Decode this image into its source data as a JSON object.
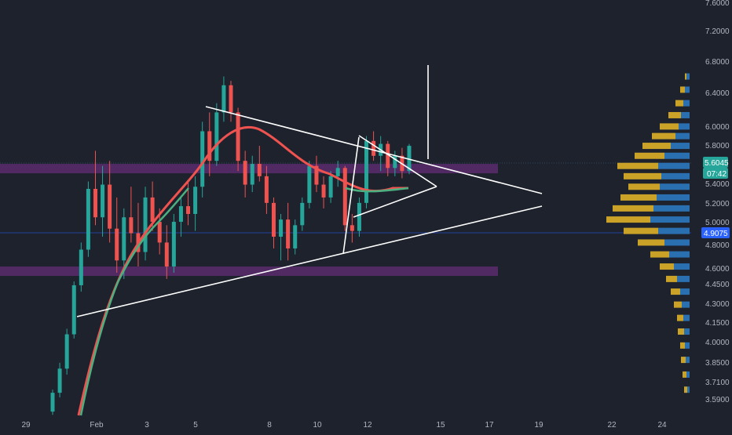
{
  "chart_data": {
    "type": "candlestick",
    "x_axis": {
      "ticks": [
        "29",
        "Feb",
        "3",
        "5",
        "8",
        "10",
        "12",
        "15",
        "17",
        "19",
        "22",
        "24"
      ]
    },
    "y_axis": {
      "ticks": [
        "7.6000",
        "7.2000",
        "6.8000",
        "6.4000",
        "6.0000",
        "5.8000",
        "5.4000",
        "5.2000",
        "5.0000",
        "4.8000",
        "4.6000",
        "4.4500",
        "4.3000",
        "4.1500",
        "4.0000",
        "3.8500",
        "3.7100",
        "3.5900"
      ],
      "scale": "log"
    },
    "price_labels": {
      "current_price": "5.6045",
      "countdown": "07:42",
      "level_price": "4.9075"
    },
    "candles": [
      {
        "x": "Jan 29 late",
        "o": 3.46,
        "h": 3.6,
        "l": 3.44,
        "c": 3.58
      },
      {
        "x": "Jan 30 a",
        "o": 3.58,
        "h": 3.78,
        "l": 3.55,
        "c": 3.74
      },
      {
        "x": "Jan 30 b",
        "o": 3.74,
        "h": 4.02,
        "l": 3.7,
        "c": 3.98
      },
      {
        "x": "Jan 30 c",
        "o": 3.98,
        "h": 4.38,
        "l": 3.95,
        "c": 4.35
      },
      {
        "x": "Jan 30 d",
        "o": 4.35,
        "h": 4.7,
        "l": 4.3,
        "c": 4.64
      },
      {
        "x": "Jan 31 a",
        "o": 4.64,
        "h": 5.25,
        "l": 4.58,
        "c": 5.18
      },
      {
        "x": "Jan 31 b",
        "o": 5.18,
        "h": 5.55,
        "l": 4.85,
        "c": 4.92
      },
      {
        "x": "Jan 31 c",
        "o": 4.92,
        "h": 5.4,
        "l": 4.75,
        "c": 5.22
      },
      {
        "x": "Jan 31 d",
        "o": 5.22,
        "h": 5.45,
        "l": 4.7,
        "c": 4.82
      },
      {
        "x": "Feb 1 a",
        "o": 4.82,
        "h": 5.1,
        "l": 4.45,
        "c": 4.55
      },
      {
        "x": "Feb 1 b",
        "o": 4.55,
        "h": 5.0,
        "l": 4.4,
        "c": 4.92
      },
      {
        "x": "Feb 1 c",
        "o": 4.92,
        "h": 5.2,
        "l": 4.7,
        "c": 4.78
      },
      {
        "x": "Feb 2 a",
        "o": 4.78,
        "h": 5.05,
        "l": 4.5,
        "c": 4.62
      },
      {
        "x": "Feb 2 b",
        "o": 4.62,
        "h": 5.2,
        "l": 4.55,
        "c": 5.1
      },
      {
        "x": "Feb 2 c",
        "o": 5.1,
        "h": 5.25,
        "l": 4.8,
        "c": 4.88
      },
      {
        "x": "Feb 2 d",
        "o": 4.88,
        "h": 5.0,
        "l": 4.6,
        "c": 4.7
      },
      {
        "x": "Feb 3 a",
        "o": 4.7,
        "h": 4.85,
        "l": 4.4,
        "c": 4.5
      },
      {
        "x": "Feb 3 b",
        "o": 4.5,
        "h": 4.95,
        "l": 4.45,
        "c": 4.88
      },
      {
        "x": "Feb 3 c",
        "o": 4.88,
        "h": 5.1,
        "l": 4.75,
        "c": 5.02
      },
      {
        "x": "Feb 4 a",
        "o": 5.02,
        "h": 5.25,
        "l": 4.85,
        "c": 4.95
      },
      {
        "x": "Feb 4 b",
        "o": 4.95,
        "h": 5.3,
        "l": 4.8,
        "c": 5.2
      },
      {
        "x": "Feb 4 c",
        "o": 5.2,
        "h": 5.85,
        "l": 5.1,
        "c": 5.75
      },
      {
        "x": "Feb 4 d",
        "o": 5.75,
        "h": 5.95,
        "l": 5.3,
        "c": 5.45
      },
      {
        "x": "Feb 5 a",
        "o": 5.45,
        "h": 6.05,
        "l": 5.4,
        "c": 5.95
      },
      {
        "x": "Feb 5 b",
        "o": 5.95,
        "h": 6.35,
        "l": 5.85,
        "c": 6.25
      },
      {
        "x": "Feb 5 c",
        "o": 6.25,
        "h": 6.3,
        "l": 5.85,
        "c": 5.95
      },
      {
        "x": "Feb 6 a",
        "o": 5.95,
        "h": 6.0,
        "l": 5.35,
        "c": 5.45
      },
      {
        "x": "Feb 6 b",
        "o": 5.45,
        "h": 5.55,
        "l": 5.1,
        "c": 5.22
      },
      {
        "x": "Feb 6 c",
        "o": 5.22,
        "h": 5.5,
        "l": 5.15,
        "c": 5.42
      },
      {
        "x": "Feb 7 a",
        "o": 5.42,
        "h": 5.6,
        "l": 5.25,
        "c": 5.3
      },
      {
        "x": "Feb 7 b",
        "o": 5.3,
        "h": 5.4,
        "l": 4.95,
        "c": 5.05
      },
      {
        "x": "Feb 7 c",
        "o": 5.05,
        "h": 5.1,
        "l": 4.65,
        "c": 4.75
      },
      {
        "x": "Feb 7 d",
        "o": 4.75,
        "h": 4.95,
        "l": 4.55,
        "c": 4.9
      },
      {
        "x": "Feb 8 a",
        "o": 4.9,
        "h": 5.05,
        "l": 4.55,
        "c": 4.65
      },
      {
        "x": "Feb 8 b",
        "o": 4.65,
        "h": 4.9,
        "l": 4.6,
        "c": 4.85
      },
      {
        "x": "Feb 8 c",
        "o": 4.85,
        "h": 5.1,
        "l": 4.8,
        "c": 5.05
      },
      {
        "x": "Feb 9 a",
        "o": 5.05,
        "h": 5.45,
        "l": 5.0,
        "c": 5.4
      },
      {
        "x": "Feb 9 b",
        "o": 5.4,
        "h": 5.5,
        "l": 5.15,
        "c": 5.22
      },
      {
        "x": "Feb 9 c",
        "o": 5.22,
        "h": 5.3,
        "l": 5.0,
        "c": 5.1
      },
      {
        "x": "Feb 9 d",
        "o": 5.1,
        "h": 5.35,
        "l": 5.05,
        "c": 5.3
      },
      {
        "x": "Feb 10 a",
        "o": 5.3,
        "h": 5.45,
        "l": 5.2,
        "c": 5.38
      },
      {
        "x": "Feb 10 b",
        "o": 5.38,
        "h": 5.4,
        "l": 4.8,
        "c": 4.85
      },
      {
        "x": "Feb 10 c",
        "o": 4.85,
        "h": 4.95,
        "l": 4.7,
        "c": 4.8
      },
      {
        "x": "Feb 11 a",
        "o": 4.8,
        "h": 5.1,
        "l": 4.75,
        "c": 5.05
      },
      {
        "x": "Feb 11 b",
        "o": 5.05,
        "h": 5.7,
        "l": 5.0,
        "c": 5.65
      },
      {
        "x": "Feb 11 c",
        "o": 5.65,
        "h": 5.75,
        "l": 5.45,
        "c": 5.5
      },
      {
        "x": "Feb 12 a",
        "o": 5.5,
        "h": 5.7,
        "l": 5.35,
        "c": 5.62
      },
      {
        "x": "Feb 12 b",
        "o": 5.62,
        "h": 5.65,
        "l": 5.3,
        "c": 5.38
      },
      {
        "x": "Feb 12 c",
        "o": 5.38,
        "h": 5.55,
        "l": 5.3,
        "c": 5.5
      },
      {
        "x": "Feb 13 a",
        "o": 5.5,
        "h": 5.58,
        "l": 5.28,
        "c": 5.35
      },
      {
        "x": "Feb 13 b",
        "o": 5.35,
        "h": 5.62,
        "l": 5.32,
        "c": 5.6
      }
    ],
    "ma_fast": {
      "name": "",
      "color": "#ef5350",
      "approx": true
    },
    "ma_slow": {
      "name": "",
      "color": "#4caf80",
      "approx": true
    },
    "zones": [
      {
        "from": 5.33,
        "to": 5.42,
        "color": "#5b2c6f"
      },
      {
        "from": 4.43,
        "to": 4.5,
        "color": "#5b2c6f"
      }
    ],
    "volume_profile": {
      "levels": [
        {
          "price": 6.35,
          "up": 0.2,
          "down": 0.1
        },
        {
          "price": 6.2,
          "up": 0.3,
          "down": 0.3
        },
        {
          "price": 6.05,
          "up": 0.4,
          "down": 0.5
        },
        {
          "price": 5.92,
          "up": 0.55,
          "down": 0.8
        },
        {
          "price": 5.8,
          "up": 0.7,
          "down": 1.2
        },
        {
          "price": 5.7,
          "up": 0.9,
          "down": 1.5
        },
        {
          "price": 5.6,
          "up": 1.2,
          "down": 1.8
        },
        {
          "price": 5.5,
          "up": 1.6,
          "down": 1.9
        },
        {
          "price": 5.4,
          "up": 2.0,
          "down": 2.6
        },
        {
          "price": 5.3,
          "up": 1.8,
          "down": 2.4
        },
        {
          "price": 5.2,
          "up": 1.9,
          "down": 2.0
        },
        {
          "price": 5.1,
          "up": 2.1,
          "down": 2.3
        },
        {
          "price": 5.0,
          "up": 2.3,
          "down": 2.6
        },
        {
          "price": 4.9,
          "up": 2.5,
          "down": 2.8
        },
        {
          "price": 4.8,
          "up": 2.0,
          "down": 2.2
        },
        {
          "price": 4.7,
          "up": 1.6,
          "down": 1.7
        },
        {
          "price": 4.6,
          "up": 1.3,
          "down": 1.2
        },
        {
          "price": 4.5,
          "up": 1.0,
          "down": 0.9
        },
        {
          "price": 4.4,
          "up": 0.8,
          "down": 0.7
        },
        {
          "price": 4.3,
          "up": 0.6,
          "down": 0.6
        },
        {
          "price": 4.2,
          "up": 0.5,
          "down": 0.5
        },
        {
          "price": 4.1,
          "up": 0.4,
          "down": 0.4
        },
        {
          "price": 4.0,
          "up": 0.35,
          "down": 0.4
        },
        {
          "price": 3.9,
          "up": 0.3,
          "down": 0.3
        },
        {
          "price": 3.8,
          "up": 0.25,
          "down": 0.3
        },
        {
          "price": 3.7,
          "up": 0.2,
          "down": 0.25
        },
        {
          "price": 3.6,
          "up": 0.15,
          "down": 0.2
        }
      ]
    },
    "colors": {
      "background": "#1e222d",
      "up_candle": "#26a69a",
      "down_candle": "#ef5350",
      "profile_up": "#2a6fb0",
      "profile_down": "#c9a227",
      "axis_text": "#b2b5be",
      "trendline": "#ffffff",
      "price_badge": "#26a69a",
      "level_badge": "#2962ff"
    }
  }
}
